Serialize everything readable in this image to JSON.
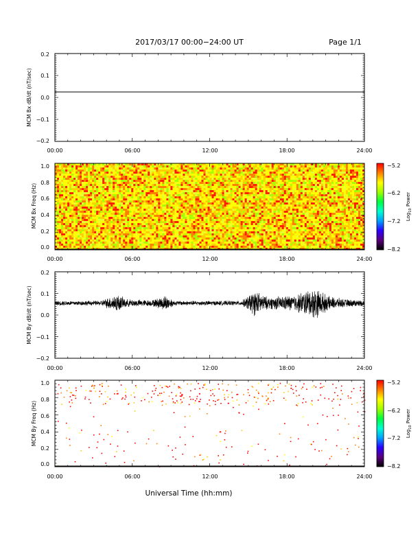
{
  "header": {
    "title": "2017/03/17  00:00−24:00 UT",
    "page": "Page 1/1"
  },
  "xaxis": {
    "ticks": [
      "00:00",
      "06:00",
      "12:00",
      "18:00",
      "24:00"
    ],
    "label": "Universal Time (hh:mm)"
  },
  "colorbar": {
    "ticks": [
      "−5.2",
      "−6.2",
      "−7.2",
      "−8.2"
    ],
    "label_main": "Log",
    "label_sub": "10",
    "label_tail": " Power",
    "colors": [
      "#000000",
      "#5a007a",
      "#2a00ff",
      "#00a0ff",
      "#00ffd0",
      "#00ff40",
      "#a0ff00",
      "#ffff00",
      "#ff8000",
      "#ff0000"
    ]
  },
  "chart_data": [
    {
      "type": "line",
      "ylabel": "MCM Bx dB/dt (nT/sec)",
      "yticks": [
        "0.2",
        "0.1",
        "0.0",
        "−0.1",
        "−0.2"
      ],
      "ylim": [
        -0.2,
        0.2
      ],
      "xlim": [
        0,
        24
      ],
      "series": [
        {
          "x": [
            0,
            24
          ],
          "y": [
            0.025,
            0.025
          ]
        }
      ],
      "color": "#000000"
    },
    {
      "type": "heatmap",
      "ylabel": "MCM Bx Freq (Hz)",
      "yticks": [
        "1.0",
        "0.8",
        "0.6",
        "0.4",
        "0.2",
        "0.0"
      ],
      "ylim": [
        0,
        1.05
      ],
      "xlim": [
        0,
        24
      ],
      "zlim": [
        -8.2,
        -5.2
      ],
      "dominant_range": [
        -5.6,
        -5.2
      ]
    },
    {
      "type": "line",
      "ylabel": "MCM By dB/dt (nT/sec)",
      "yticks": [
        "0.2",
        "0.1",
        "0.0",
        "−0.1",
        "−0.2"
      ],
      "ylim": [
        -0.2,
        0.2
      ],
      "xlim": [
        0,
        24
      ],
      "baseline": 0.055,
      "color": "#000000",
      "envelope": [
        {
          "t": 0.0,
          "amp": 0.012
        },
        {
          "t": 3.5,
          "amp": 0.012
        },
        {
          "t": 4.8,
          "amp": 0.045
        },
        {
          "t": 5.6,
          "amp": 0.02
        },
        {
          "t": 7.5,
          "amp": 0.015
        },
        {
          "t": 8.6,
          "amp": 0.04
        },
        {
          "t": 9.3,
          "amp": 0.012
        },
        {
          "t": 14.5,
          "amp": 0.012
        },
        {
          "t": 15.5,
          "amp": 0.065
        },
        {
          "t": 16.5,
          "amp": 0.03
        },
        {
          "t": 18.5,
          "amp": 0.04
        },
        {
          "t": 20.2,
          "amp": 0.08
        },
        {
          "t": 21.2,
          "amp": 0.035
        },
        {
          "t": 22.5,
          "amp": 0.02
        },
        {
          "t": 24.0,
          "amp": 0.015
        }
      ]
    },
    {
      "type": "heatmap",
      "ylabel": "MCM By Freq (Hz)",
      "yticks": [
        "1.0",
        "0.8",
        "0.6",
        "0.4",
        "0.2",
        "0.0"
      ],
      "ylim": [
        0,
        1.05
      ],
      "xlim": [
        0,
        24
      ],
      "zlim": [
        -8.2,
        -5.2
      ],
      "sparse": true
    }
  ]
}
